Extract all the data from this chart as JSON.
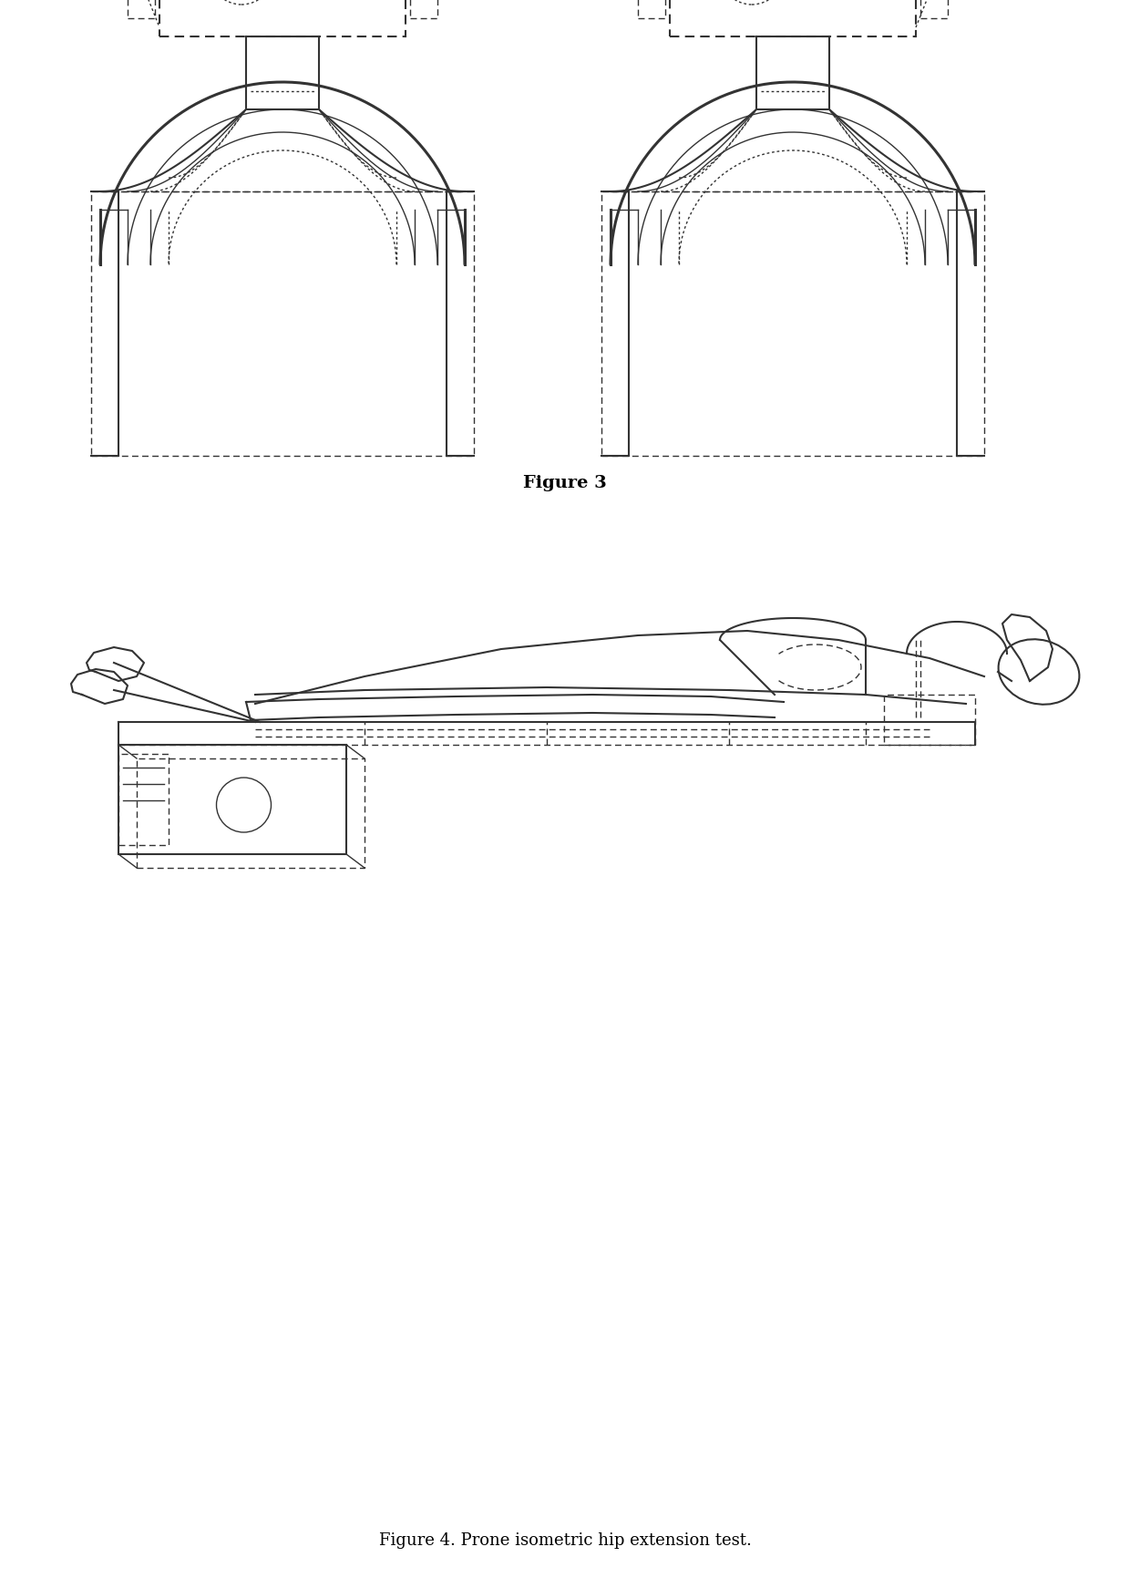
{
  "fig_width": 12.4,
  "fig_height": 17.42,
  "dpi": 100,
  "bg_color": "#ffffff",
  "line_color": "#333333",
  "figure3_label": "Figure 3",
  "figure4_label": "Figure 4. Prone isometric hip extension test.",
  "label_fontsize": 13
}
